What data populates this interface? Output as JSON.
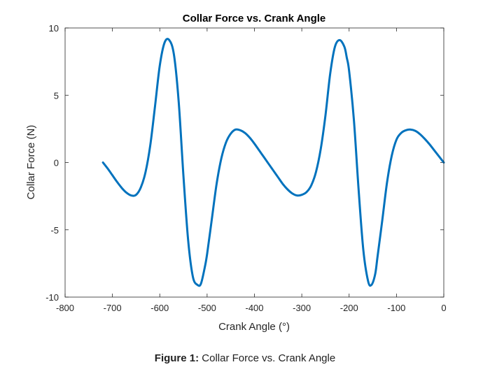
{
  "chart_data": {
    "type": "line",
    "title": "Collar Force vs. Crank Angle",
    "xlabel": "Crank Angle (°)",
    "ylabel": "Collar Force (N)",
    "xlim": [
      -800,
      0
    ],
    "ylim": [
      -10,
      10
    ],
    "xticks": [
      -800,
      -700,
      -600,
      -500,
      -400,
      -300,
      -200,
      -100,
      0
    ],
    "yticks": [
      10,
      5,
      0,
      -5,
      -10
    ],
    "xtick_labels": [
      "-800",
      "-700",
      "-600",
      "-500",
      "-400",
      "-300",
      "-200",
      "-100",
      "0"
    ],
    "ytick_labels": [
      "10",
      "5",
      "0",
      "-5",
      "-10"
    ],
    "grid": false,
    "series": [
      {
        "color": "#0072BD",
        "x": [
          -720,
          -710,
          -700,
          -690,
          -680,
          -670,
          -660,
          -650,
          -640,
          -630,
          -620,
          -610,
          -600,
          -590,
          -580,
          -570,
          -560,
          -550,
          -540,
          -530,
          -520,
          -513,
          -505,
          -500,
          -490,
          -480,
          -470,
          -460,
          -450,
          -440,
          -430,
          -420,
          -410,
          -400,
          -390,
          -380,
          -370,
          -360,
          -350,
          -340,
          -330,
          -320,
          -310,
          -300,
          -290,
          -280,
          -270,
          -260,
          -250,
          -240,
          -230,
          -220,
          -210,
          -205,
          -200,
          -190,
          -180,
          -170,
          -160,
          -153,
          -145,
          -140,
          -130,
          -120,
          -110,
          -100,
          -90,
          -80,
          -70,
          -60,
          -50,
          -40,
          -30,
          -20,
          -10,
          0
        ],
        "values": [
          0,
          -0.45,
          -0.95,
          -1.45,
          -1.9,
          -2.25,
          -2.45,
          -2.4,
          -1.85,
          -0.7,
          1.3,
          4.2,
          7.2,
          8.9,
          9.1,
          8.0,
          4.5,
          -1.0,
          -5.8,
          -8.5,
          -9.1,
          -9.0,
          -7.8,
          -6.8,
          -4.2,
          -1.6,
          0.3,
          1.5,
          2.15,
          2.45,
          2.4,
          2.2,
          1.85,
          1.4,
          0.9,
          0.4,
          -0.1,
          -0.6,
          -1.1,
          -1.6,
          -2.0,
          -2.3,
          -2.45,
          -2.4,
          -2.2,
          -1.7,
          -0.7,
          1.0,
          3.5,
          6.6,
          8.6,
          9.1,
          8.6,
          7.8,
          6.8,
          3.2,
          -2.0,
          -6.5,
          -8.8,
          -9.1,
          -8.3,
          -7.0,
          -4.3,
          -1.5,
          0.5,
          1.7,
          2.2,
          2.4,
          2.45,
          2.35,
          2.1,
          1.75,
          1.35,
          0.9,
          0.45,
          0
        ]
      }
    ]
  },
  "caption": {
    "prefix": "Figure 1:",
    "text": "Collar Force vs. Crank Angle"
  }
}
